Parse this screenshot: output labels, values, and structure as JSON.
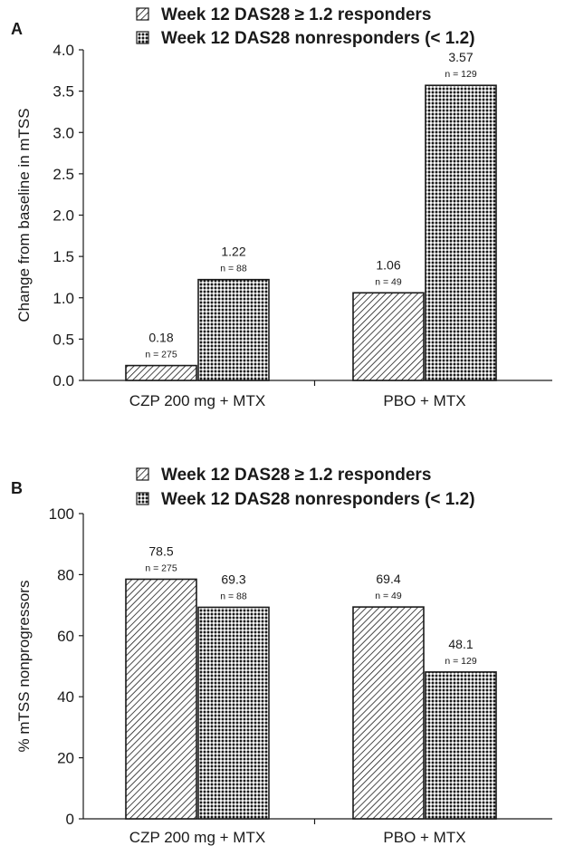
{
  "chart_data": [
    {
      "panel": "A",
      "type": "bar",
      "legend": [
        "Week 12 DAS28 ≥ 1.2 responders",
        "Week 12 DAS28 nonresponders (< 1.2)"
      ],
      "ylabel": "Change from baseline in mTSS",
      "xlabel": "",
      "ylim": [
        0,
        4.0
      ],
      "yticks": [
        0.0,
        0.5,
        1.0,
        1.5,
        2.0,
        2.5,
        3.0,
        3.5,
        4.0
      ],
      "ytick_labels": [
        "0.0",
        "0.5",
        "1.0",
        "1.5",
        "2.0",
        "2.5",
        "3.0",
        "3.5",
        "4.0"
      ],
      "categories": [
        "CZP 200 mg + MTX",
        "PBO + MTX"
      ],
      "series": [
        {
          "name": "Week 12 DAS28 ≥ 1.2 responders",
          "pattern": "hatch",
          "values": [
            0.18,
            1.06
          ],
          "labels": [
            "0.18",
            "1.06"
          ],
          "n_labels": [
            "n = 275",
            "n = 49"
          ]
        },
        {
          "name": "Week 12 DAS28 nonresponders (< 1.2)",
          "pattern": "dots",
          "values": [
            1.22,
            3.57
          ],
          "labels": [
            "1.22",
            "3.57"
          ],
          "n_labels": [
            "n = 88",
            "n = 129"
          ]
        }
      ]
    },
    {
      "panel": "B",
      "type": "bar",
      "legend": [
        "Week 12 DAS28 ≥ 1.2 responders",
        "Week 12 DAS28 nonresponders (< 1.2)"
      ],
      "ylabel": "% mTSS nonprogressors",
      "xlabel": "",
      "ylim": [
        0,
        100
      ],
      "yticks": [
        0,
        20,
        40,
        60,
        80,
        100
      ],
      "ytick_labels": [
        "0",
        "20",
        "40",
        "60",
        "80",
        "100"
      ],
      "categories": [
        "CZP 200 mg + MTX",
        "PBO + MTX"
      ],
      "series": [
        {
          "name": "Week 12 DAS28 ≥ 1.2 responders",
          "pattern": "hatch",
          "values": [
            78.5,
            69.4
          ],
          "labels": [
            "78.5",
            "69.4"
          ],
          "n_labels": [
            "n = 275",
            "n = 49"
          ]
        },
        {
          "name": "Week 12 DAS28 nonresponders (< 1.2)",
          "pattern": "dots",
          "values": [
            69.3,
            48.1
          ],
          "labels": [
            "69.3",
            "48.1"
          ],
          "n_labels": [
            "n = 88",
            "n = 129"
          ]
        }
      ]
    }
  ]
}
